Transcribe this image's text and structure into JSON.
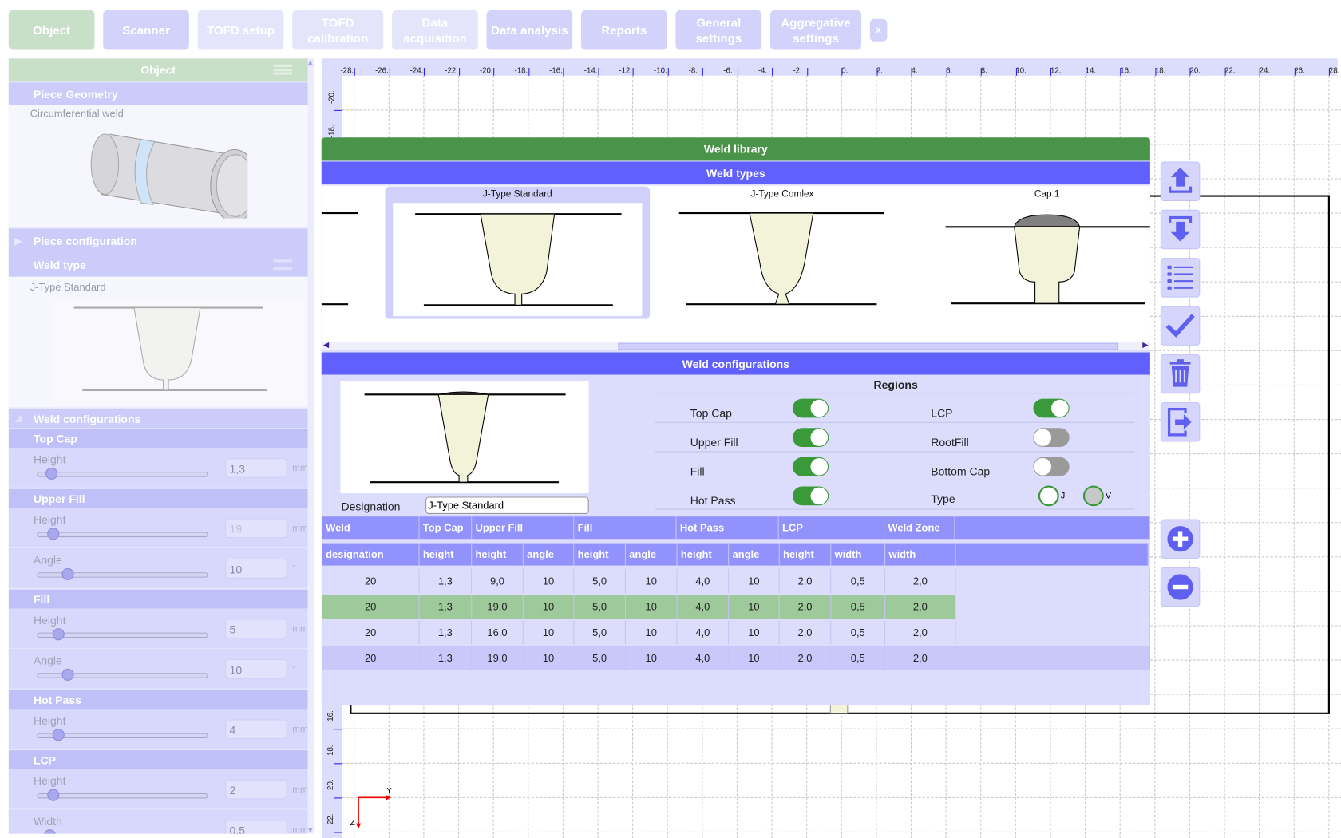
{
  "tabs": [
    {
      "label": "Object",
      "bg": "#c8dfc8",
      "active": true
    },
    {
      "label": "Scanner",
      "bg": "#d2d2fa"
    },
    {
      "label": "TOFD setup",
      "bg": "#e4e4fb"
    },
    {
      "label": "TOFD calibration",
      "bg": "#e4e4fb"
    },
    {
      "label": "Data acquisition",
      "bg": "#e4e4fb"
    },
    {
      "label": "Data  analysis",
      "bg": "#d2d2fa"
    },
    {
      "label": "Reports",
      "bg": "#d2d2fa"
    },
    {
      "label": "General settings",
      "bg": "#d2d2fa"
    },
    {
      "label": "Aggregative settings",
      "bg": "#d2d2fa"
    },
    {
      "label": "x",
      "bg": "#d2d2fa"
    }
  ],
  "left_panel": {
    "title": "Object",
    "piece_geometry": "Piece Geometry",
    "geometry_value": "Circumferential weld",
    "piece_configuration": "Piece configuration",
    "weld_type": "Weld type",
    "weld_type_value": "J-Type Standard",
    "weld_configurations": "Weld configurations",
    "groups": [
      {
        "title": "Top Cap",
        "params": [
          {
            "label": "Height",
            "value": "1,3",
            "unit": "mm",
            "level": 0.05
          }
        ]
      },
      {
        "title": "Upper Fill",
        "params": [
          {
            "label": "Height",
            "value": "19",
            "unit": "mm",
            "level": 0.06,
            "faded": true
          },
          {
            "label": "Angle",
            "value": "10",
            "unit": "°",
            "level": 0.15
          }
        ]
      },
      {
        "title": "Fill",
        "params": [
          {
            "label": "Height",
            "value": "5",
            "unit": "mm",
            "level": 0.09
          },
          {
            "label": "Angle",
            "value": "10",
            "unit": "°",
            "level": 0.15
          }
        ]
      },
      {
        "title": "Hot Pass",
        "params": [
          {
            "label": "Height",
            "value": "4",
            "unit": "mm",
            "level": 0.09
          }
        ]
      },
      {
        "title": "LCP",
        "params": [
          {
            "label": "Height",
            "value": "2",
            "unit": "mm",
            "level": 0.06
          },
          {
            "label": "Width",
            "value": "0,5",
            "unit": "mm",
            "level": 0.04
          }
        ]
      }
    ]
  },
  "rulers": {
    "x_min": -28,
    "x_max": 28,
    "x_step": 2,
    "y_min": -20,
    "y_max": 22,
    "y_step": 2,
    "axis_y": "Y",
    "axis_z": "Z"
  },
  "dialog": {
    "title": "Weld library",
    "weld_types_title": "Weld types",
    "weld_types": [
      "J-Type Standard",
      "J-Type Comlex",
      "Cap 1"
    ],
    "selected_type": "J-Type Standard",
    "weld_configurations_title": "Weld configurations",
    "regions_title": "Regions",
    "designation_label": "Designation",
    "designation_value": "J-Type Standard",
    "regions": [
      {
        "label": "Top Cap",
        "on": true
      },
      {
        "label": "LCP",
        "on": true
      },
      {
        "label": "Upper Fill",
        "on": true
      },
      {
        "label": "RootFill",
        "on": false
      },
      {
        "label": "Fill",
        "on": true
      },
      {
        "label": "Bottom Cap",
        "on": false
      },
      {
        "label": "Hot Pass",
        "on": true
      }
    ],
    "type_label": "Type",
    "type_options": [
      {
        "label": "J",
        "selected": false
      },
      {
        "label": "V",
        "selected": true
      }
    ],
    "table": {
      "group_headers": [
        "Weld",
        "Top Cap",
        "Upper Fill",
        "Fill",
        "Hot Pass",
        "LCP",
        "Weld Zone"
      ],
      "sub_headers": [
        "designation",
        "height",
        "height",
        "angle",
        "height",
        "angle",
        "height",
        "angle",
        "height",
        "width",
        "width"
      ],
      "rows": [
        [
          "20",
          "1,3",
          "9,0",
          "10",
          "5,0",
          "10",
          "4,0",
          "10",
          "2,0",
          "0,5",
          "2,0"
        ],
        [
          "20",
          "1,3",
          "19,0",
          "10",
          "5,0",
          "10",
          "4,0",
          "10",
          "2,0",
          "0,5",
          "2,0"
        ],
        [
          "20",
          "1,3",
          "16,0",
          "10",
          "5,0",
          "10",
          "4,0",
          "10",
          "2,0",
          "0,5",
          "2,0"
        ],
        [
          "20",
          "1,3",
          "19,0",
          "10",
          "5,0",
          "10",
          "4,0",
          "10",
          "2,0",
          "0,5",
          "2,0"
        ]
      ],
      "selected_row": 1
    }
  },
  "side_buttons": [
    "upload-icon",
    "download-icon",
    "list-icon",
    "check-icon",
    "trash-icon",
    "export-icon",
    "plus-circle-icon",
    "minus-circle-icon"
  ],
  "colors": {
    "green": "#4a944a",
    "blue": "#6060ff",
    "toggle_on": "#3a9a3a",
    "toggle_off": "#9a9a9a",
    "selected_row": "#9ec99a",
    "weld_fill": "#f3f3da"
  }
}
